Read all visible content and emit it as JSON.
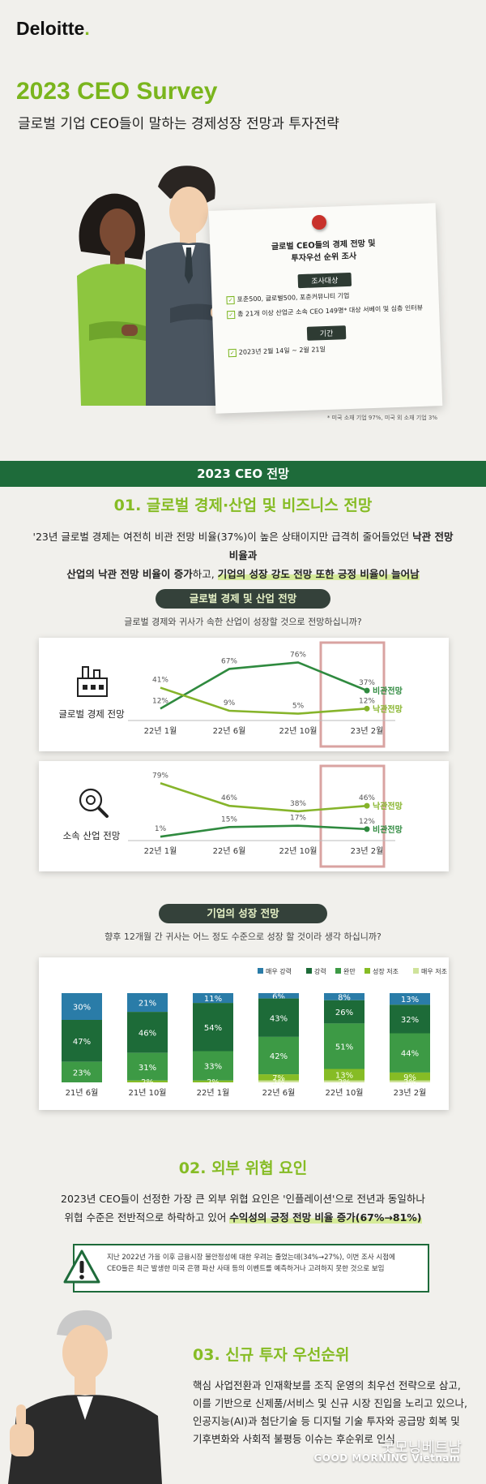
{
  "header": {
    "logo": "Deloitte",
    "logo_dot": ".",
    "title": "2023 CEO Survey",
    "subtitle": "글로벌 기업 CEO들이 말하는 경제성장 전망과 투자전략"
  },
  "survey_card": {
    "title_line1": "글로벌 CEO들의 경제 전망 및",
    "title_line2": "투자우선 순위 조사",
    "target_label": "조사대상",
    "target_items": [
      "포춘500, 글로벌500, 포춘커뮤니티 기업",
      "총 21개 이상 산업군 소속 CEO 149명* 대상 서베이 및 심층 인터뷰"
    ],
    "period_label": "기간",
    "period_value": "2023년 2월 14일 ~ 2월 21일",
    "footnote": "* 미국 소재 기업 97%, 미국 외 소재 기업 3%"
  },
  "banner": "2023 CEO 전망",
  "section1": {
    "title": "01. 글로벌 경제·산업 및 비즈니스 전망",
    "para_line1_plain": "'23년 글로벌 경제는 여전히 비관 전망 비율(37%)이 높은 상태이지만 급격히 줄어들었던",
    "para_line1_bold": "낙관 전망 비율과",
    "para_line2_bold": "산업의 낙관 전망 비율이 증가",
    "para_line2_plain": "하고,",
    "para_line2_hl": "기업의 성장 강도 전망 또한 긍정 비율이 늘어남",
    "subhead": "글로벌 경제 및 산업 전망",
    "question": "글로벌 경제와 귀사가 속한 산업이 성장할 것으로 전망하십니까?"
  },
  "section_growth": {
    "subhead": "기업의 성장 전망",
    "question": "향후 12개월 간 귀사는 어느 정도 수준으로 성장 할 것이라 생각 하십니까?"
  },
  "section2": {
    "title": "02. 외부 위협 요인",
    "para_line1": "2023년 CEO들이 선정한 가장 큰 외부 위협 요인은 '인플레이션'으로 전년과 동일하나",
    "para_line2_plain": "위협 수준은 전반적으로 하락하고 있어",
    "para_line2_hl": "수익성의 긍정 전망 비율 증가(67%→81%)",
    "warn_icon": "warning-icon",
    "warn_line1": "지난 2022년 가을 이후 금융시장 불안정성에 대한 우려는 줄었는데(34%→27%), 이번 조사 시점에",
    "warn_line2": "CEO들은 최근 발생한 미국 은행 파산 사태 등의 이벤트를 예측하거나 고려하지 못한 것으로 보임"
  },
  "section3": {
    "title": "03. 신규 투자 우선순위",
    "lines": [
      "핵심 사업전환과 인재확보를 조직 운영의 최우선 전략으로 삼고,",
      "이를 기반으로 신제품/서비스 및 신규 시장 진입을 노리고 있으나,",
      "인공지능(AI)과 첨단기술 등 디지털 기술 투자와 공급망 회복 및",
      "기후변화와 사회적 불평등 이슈는 후순위로 인식"
    ]
  },
  "watermark": {
    "script": "굿모닝베트남",
    "text": "GOOD MORNING Vietnam"
  },
  "chart_data": [
    {
      "type": "line",
      "name": "글로벌 경제 전망",
      "categories": [
        "22년 1월",
        "22년 6월",
        "22년 10월",
        "23년 2월"
      ],
      "series": [
        {
          "name": "비관전망",
          "values": [
            12,
            67,
            76,
            37
          ],
          "color": "#2f8a3f"
        },
        {
          "name": "낙관전망",
          "values": [
            41,
            9,
            5,
            12
          ],
          "color": "#86b42b"
        }
      ],
      "ylim": [
        0,
        90
      ]
    },
    {
      "type": "line",
      "name": "소속 산업 전망",
      "categories": [
        "22년 1월",
        "22년 6월",
        "22년 10월",
        "23년 2월"
      ],
      "series": [
        {
          "name": "낙관전망",
          "values": [
            79,
            46,
            38,
            46
          ],
          "color": "#86b42b"
        },
        {
          "name": "비관전망",
          "values": [
            1,
            15,
            17,
            12
          ],
          "color": "#2f8a3f"
        }
      ],
      "ylim": [
        0,
        90
      ]
    },
    {
      "type": "bar",
      "stacked": true,
      "categories": [
        "21년 6월",
        "21년 10월",
        "22년 1월",
        "22년 6월",
        "22년 10월",
        "23년 2월"
      ],
      "legend_position": "top-right",
      "series": [
        {
          "name": "매우 강력",
          "values": [
            30,
            21,
            11,
            6,
            8,
            13
          ],
          "color": "#2a7ca8"
        },
        {
          "name": "강력",
          "values": [
            47,
            46,
            54,
            43,
            26,
            32
          ],
          "color": "#1d6b38"
        },
        {
          "name": "완만",
          "values": [
            23,
            31,
            33,
            42,
            51,
            44
          ],
          "color": "#3d9a45"
        },
        {
          "name": "성장 저조",
          "values": [
            0,
            2,
            2,
            7,
            13,
            9
          ],
          "color": "#86bc25"
        },
        {
          "name": "매우 저조",
          "values": [
            0,
            0,
            0,
            2,
            2,
            2
          ],
          "color": "#cfe39b"
        }
      ],
      "labels": [
        [
          "30%",
          "47%",
          "23%",
          "",
          ""
        ],
        [
          "21%",
          "46%",
          "31%",
          "2%",
          ""
        ],
        [
          "11%",
          "54%",
          "33%",
          "2%",
          ""
        ],
        [
          "6%",
          "43%",
          "42%",
          "7%",
          "2%"
        ],
        [
          "8%",
          "26%",
          "51%",
          "13%",
          "2%"
        ],
        [
          "13%",
          "32%",
          "44%",
          "9%",
          "2%"
        ]
      ],
      "ylim": [
        0,
        100
      ]
    }
  ]
}
